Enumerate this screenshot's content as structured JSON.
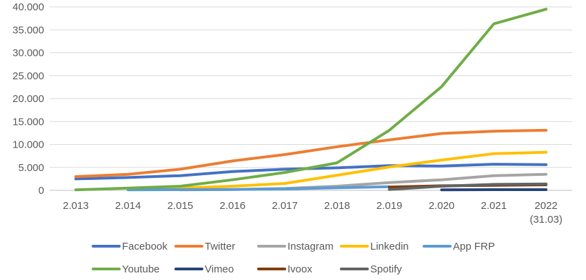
{
  "chart_data": {
    "type": "line",
    "title": "",
    "xlabel": "",
    "ylabel": "",
    "categories": [
      "2.013",
      "2.014",
      "2.015",
      "2.016",
      "2.017",
      "2.018",
      "2.019",
      "2.020",
      "2.021",
      "2022\n(31.03)"
    ],
    "y_ticks": [
      "0",
      "5.000",
      "10.000",
      "15.000",
      "20.000",
      "25.000",
      "30.000",
      "35.000",
      "40.000"
    ],
    "ylim": [
      0,
      40000
    ],
    "grid": true,
    "legend_position": "bottom",
    "series": [
      {
        "name": "Facebook",
        "color": "#4472C4",
        "values": [
          2500,
          2800,
          3200,
          4100,
          4600,
          4900,
          5400,
          5300,
          5700,
          5600
        ]
      },
      {
        "name": "Twitter",
        "color": "#ED7D31",
        "values": [
          3000,
          3500,
          4600,
          6400,
          7800,
          9500,
          11000,
          12400,
          12900,
          13100
        ]
      },
      {
        "name": "Instagram",
        "color": "#A5A5A5",
        "values": [
          null,
          null,
          100,
          200,
          400,
          900,
          1700,
          2300,
          3200,
          3500
        ]
      },
      {
        "name": "Linkedin",
        "color": "#FFC000",
        "values": [
          null,
          200,
          500,
          900,
          1500,
          3300,
          5100,
          6600,
          8000,
          8300
        ]
      },
      {
        "name": "App FRP",
        "color": "#5B9BD5",
        "values": [
          null,
          100,
          150,
          200,
          300,
          550,
          800,
          null,
          null,
          null
        ]
      },
      {
        "name": "Youtube",
        "color": "#70AD47",
        "values": [
          100,
          500,
          900,
          2300,
          3900,
          6000,
          13100,
          22600,
          36300,
          39500
        ]
      },
      {
        "name": "Vimeo",
        "color": "#264478",
        "values": [
          null,
          null,
          null,
          null,
          null,
          null,
          null,
          100,
          150,
          150
        ]
      },
      {
        "name": "Ivoox",
        "color": "#843C0C",
        "values": [
          null,
          null,
          null,
          null,
          null,
          null,
          700,
          1000,
          1100,
          1200
        ]
      },
      {
        "name": "Spotify",
        "color": "#636363",
        "values": [
          null,
          null,
          null,
          null,
          null,
          null,
          200,
          900,
          1300,
          1400
        ]
      }
    ]
  }
}
